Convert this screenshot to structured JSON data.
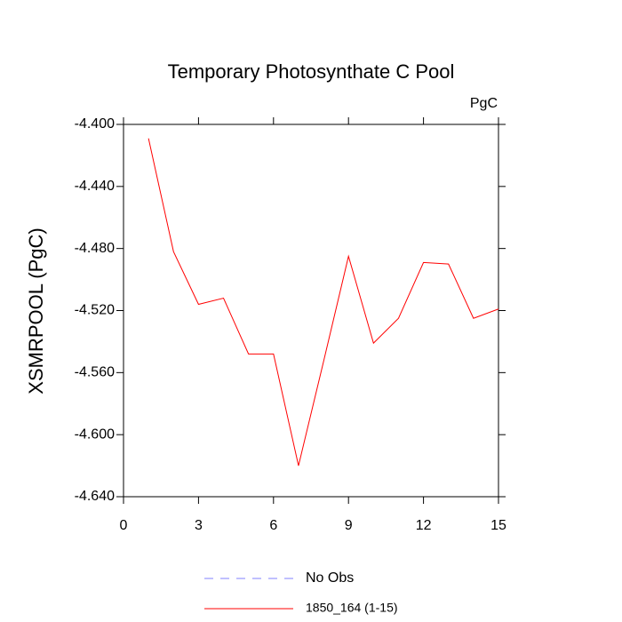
{
  "chart_data": {
    "type": "line",
    "title": "Temporary Photosynthate C Pool",
    "units": "PgC",
    "y_label": "XSMRPOOL  (PgC)",
    "x": [
      1,
      2,
      3,
      4,
      5,
      6,
      7,
      8,
      9,
      10,
      11,
      12,
      13,
      14,
      15
    ],
    "series": [
      {
        "name": "1850_164 (1-15)",
        "color": "#ff0000",
        "values": [
          -4.409,
          -4.482,
          -4.516,
          -4.512,
          -4.548,
          -4.548,
          -4.62,
          -4.553,
          -4.485,
          -4.541,
          -4.525,
          -4.489,
          -4.49,
          -4.525,
          -4.519
        ]
      }
    ],
    "reference_line": {
      "name": "No Obs",
      "color": "#8080ff",
      "style": "dashed"
    },
    "xlim": [
      0,
      15
    ],
    "xticks": [
      0,
      3,
      6,
      9,
      12,
      15
    ],
    "ylim": [
      -4.64,
      -4.4
    ],
    "yticks": [
      {
        "value": -4.64,
        "label": "-4.640"
      },
      {
        "value": -4.6,
        "label": "-4.600"
      },
      {
        "value": -4.56,
        "label": "-4.560"
      },
      {
        "value": -4.52,
        "label": "-4.520"
      },
      {
        "value": -4.48,
        "label": "-4.480"
      },
      {
        "value": -4.44,
        "label": "-4.440"
      },
      {
        "value": -4.4,
        "label": "-4.400"
      }
    ]
  }
}
